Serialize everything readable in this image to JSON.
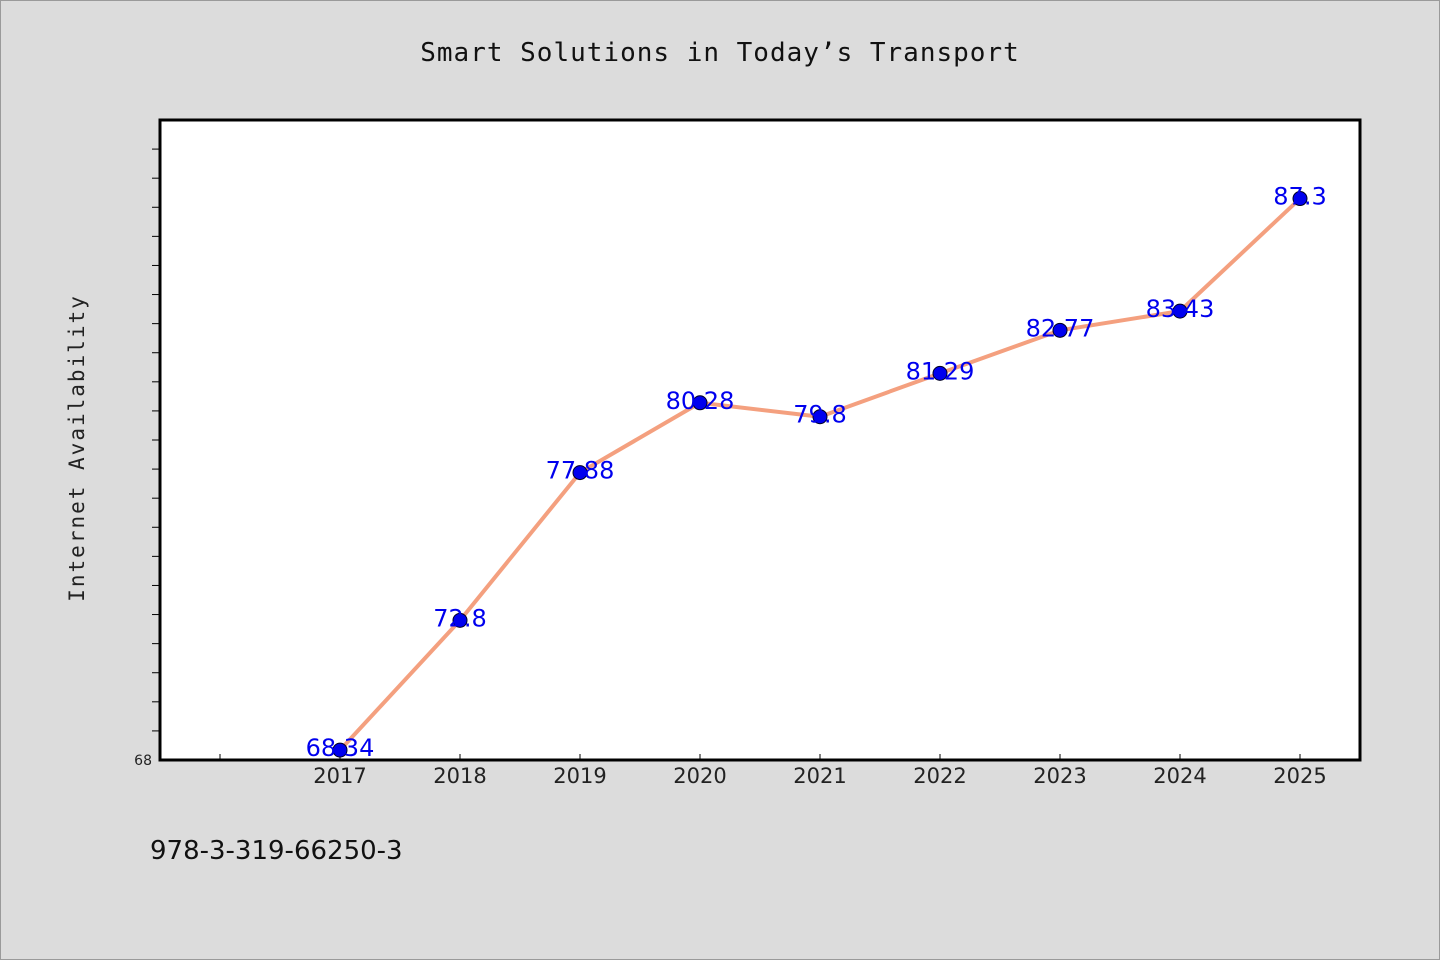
{
  "footer": {
    "code": "978-3-319-66250-3"
  },
  "colors": {
    "background": "#dcdcdc",
    "plot_background": "#ffffff",
    "line": "#f4a07f",
    "marker": "#0000ee",
    "data_label": "#0000ee",
    "axis": "#000000"
  },
  "chart_data": {
    "type": "line",
    "title": "Smart Solutions in Today’s Transport",
    "xlabel": "",
    "ylabel": "Internet Availability",
    "x": [
      "2017",
      "2018",
      "2019",
      "2020",
      "2021",
      "2022",
      "2023",
      "2024",
      "2025"
    ],
    "series": [
      {
        "values": [
          68.34,
          72.8,
          77.88,
          80.28,
          79.8,
          81.29,
          82.77,
          83.43,
          87.3
        ],
        "labels": [
          "68.34",
          "72.8",
          "77.88",
          "80.28",
          "79.8",
          "81.29",
          "82.77",
          "83.43",
          "87.3"
        ]
      }
    ],
    "ylim": [
      68,
      90
    ],
    "y_tick_labels": [
      "68"
    ],
    "grid": false,
    "legend": "none"
  }
}
